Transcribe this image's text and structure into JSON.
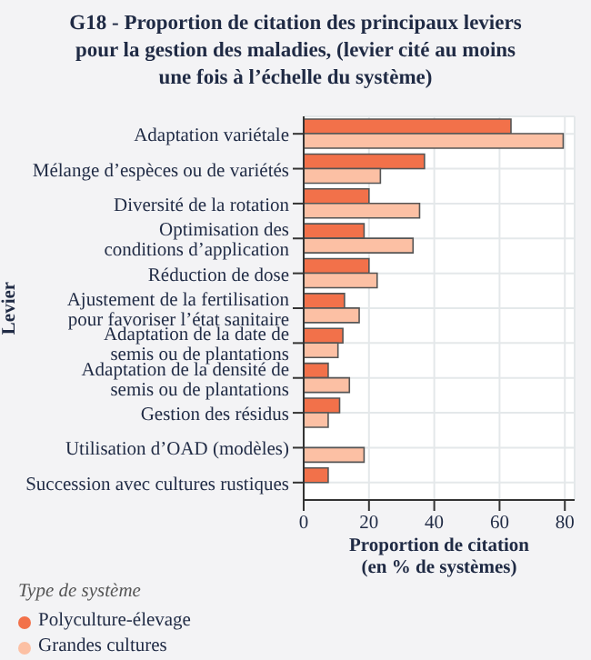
{
  "chart_data": {
    "type": "bar",
    "orientation": "horizontal",
    "title": "G18 - Proportion de citation des principaux leviers\npour la gestion des maladies, (levier cité au moins\nune fois à l’échelle du système)",
    "xlabel": "Proportion de citation\n(en % de systèmes)",
    "ylabel": "Levier",
    "legend_title": "Type de système",
    "categories": [
      "Adaptation variétale",
      "Mélange d’espèces ou de variétés",
      "Diversité de la rotation",
      "Optimisation des\nconditions d’application",
      "Réduction de dose",
      "Ajustement de la fertilisation\npour favoriser l’état sanitaire",
      "Adaptation de la date de\nsemis ou de plantations",
      "Adaptation de la densité de\nsemis ou de plantations",
      "Gestion des résidus",
      "Utilisation d’OAD (modèles)",
      "Succession avec cultures rustiques"
    ],
    "series": [
      {
        "name": "Polyculture-élevage",
        "color": "#f2714a",
        "values": [
          63.5,
          37,
          20,
          18.5,
          20,
          12.5,
          12,
          7.5,
          11,
          null,
          7.5
        ]
      },
      {
        "name": "Grandes cultures",
        "color": "#fcc0a4",
        "values": [
          79.5,
          23.5,
          35.5,
          33.5,
          22.5,
          17,
          10.5,
          14,
          7.5,
          18.5,
          null
        ]
      }
    ],
    "xlim": [
      0,
      83
    ],
    "xticks": [
      0,
      20,
      40,
      60,
      80
    ],
    "grid": true,
    "legend": "bottom left"
  }
}
